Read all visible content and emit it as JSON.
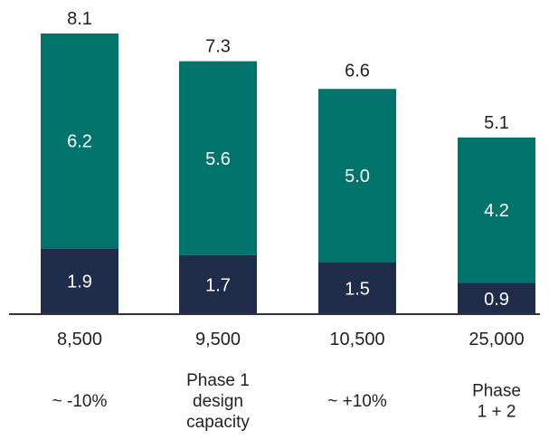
{
  "chart_data": {
    "type": "bar",
    "stacked": true,
    "title": "",
    "xlabel": "",
    "ylabel": "",
    "ylim": [
      0,
      8.1
    ],
    "grid": false,
    "legend": "none",
    "categories": [
      "8,500",
      "9,500",
      "10,500",
      "25,000"
    ],
    "category_notes": [
      [
        "~ -10%"
      ],
      [
        "Phase 1",
        "design",
        "capacity"
      ],
      [
        "~ +10%"
      ],
      [
        "Phase",
        "1 + 2"
      ]
    ],
    "series": [
      {
        "values": [
          1.9,
          1.7,
          1.5,
          0.9
        ],
        "labels": [
          "1.9",
          "1.7",
          "1.5",
          "0.9"
        ],
        "color": "#1f2d4b"
      },
      {
        "values": [
          6.2,
          5.6,
          5.0,
          4.2
        ],
        "labels": [
          "6.2",
          "5.6",
          "5.0",
          "4.2"
        ],
        "color": "#00736b"
      }
    ],
    "totals": [
      8.1,
      7.3,
      6.6,
      5.1
    ],
    "total_labels": [
      "8.1",
      "7.3",
      "6.6",
      "5.1"
    ],
    "axis_color": "#333333"
  }
}
